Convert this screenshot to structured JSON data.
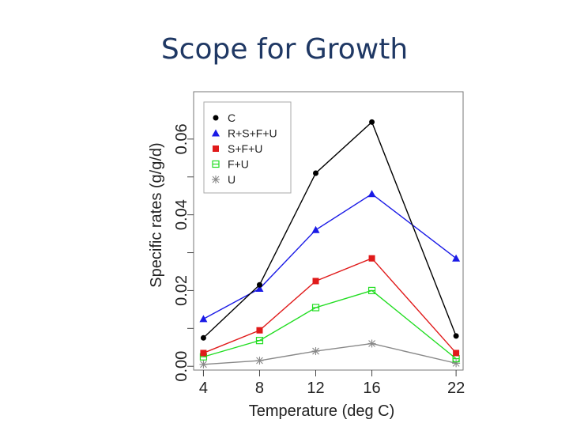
{
  "slide": {
    "title": "Scope for Growth"
  },
  "chart_data": {
    "type": "line",
    "title": "",
    "xlabel": "Temperature (deg C)",
    "ylabel": "Specific rates (g/g/d)",
    "x": [
      4,
      8,
      12,
      16,
      22
    ],
    "x_ticks": [
      "4",
      "8",
      "12",
      "16",
      "22"
    ],
    "y_ticks": [
      "0.00",
      "0.02",
      "0.04",
      "0.06"
    ],
    "xlim": [
      3.3,
      22.5
    ],
    "ylim": [
      -0.001,
      0.0725
    ],
    "grid": false,
    "legend_position": "top-left",
    "series": [
      {
        "name": "C",
        "marker": "circle",
        "color": "#000000",
        "values": [
          0.0075,
          0.0215,
          0.051,
          0.0645,
          0.008
        ]
      },
      {
        "name": "R+S+F+U",
        "marker": "triangle",
        "color": "#1a1ae6",
        "values": [
          0.0125,
          0.0205,
          0.036,
          0.0455,
          0.0285
        ]
      },
      {
        "name": "S+F+U",
        "marker": "square",
        "color": "#e01a1a",
        "values": [
          0.0035,
          0.0095,
          0.0225,
          0.0285,
          0.0035
        ]
      },
      {
        "name": "F+U",
        "marker": "boxplus",
        "color": "#22dd22",
        "values": [
          0.0025,
          0.0068,
          0.0155,
          0.02,
          0.002
        ]
      },
      {
        "name": "U",
        "marker": "asterisk",
        "color": "#888888",
        "values": [
          0.0005,
          0.0015,
          0.004,
          0.006,
          0.0008
        ]
      }
    ]
  }
}
